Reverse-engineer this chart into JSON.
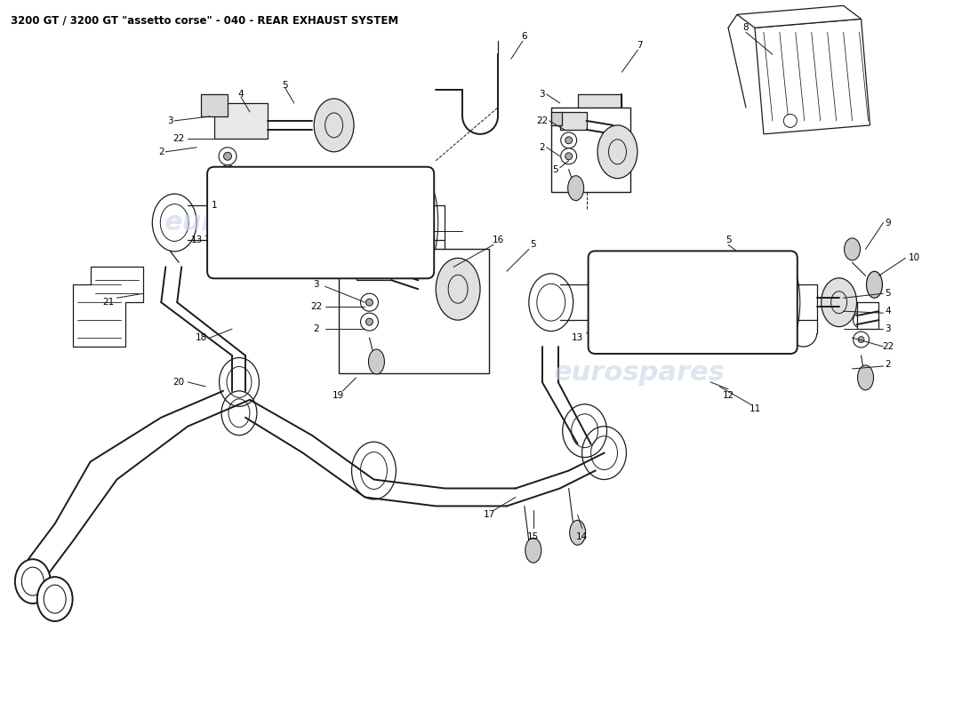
{
  "title": "3200 GT / 3200 GT \"assetto corse\" - 040 - REAR EXHAUST SYSTEM",
  "title_fontsize": 8.5,
  "bg_color": "#ffffff",
  "line_color": "#000000",
  "watermark_color": "#c8d4e8",
  "figsize": [
    11.0,
    8.0
  ],
  "dpi": 100,
  "xlim": [
    0,
    110
  ],
  "ylim": [
    0,
    80
  ]
}
